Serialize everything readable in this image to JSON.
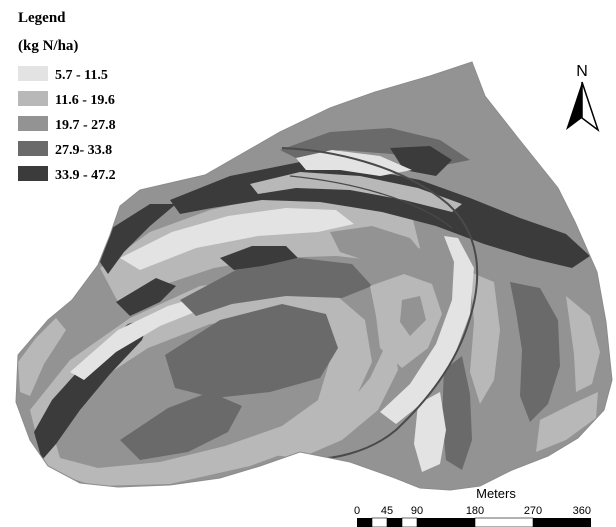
{
  "legend": {
    "title": "Legend",
    "unit": "(kg N/ha)",
    "classes": [
      {
        "label": "5.7 - 11.5",
        "color": "#e3e3e3"
      },
      {
        "label": "11.6 - 19.6",
        "color": "#b8b8b8"
      },
      {
        "label": "19.7 - 27.8",
        "color": "#939393"
      },
      {
        "label": "27.9- 33.8",
        "color": "#6a6a6a"
      },
      {
        "label": "33.9 - 47.2",
        "color": "#3b3b3b"
      }
    ]
  },
  "north_arrow": {
    "label": "N",
    "icon": "north-arrow-icon"
  },
  "scale_bar": {
    "title": "Meters",
    "ticks": [
      "0",
      "45",
      "90",
      "180",
      "270",
      "360"
    ]
  }
}
